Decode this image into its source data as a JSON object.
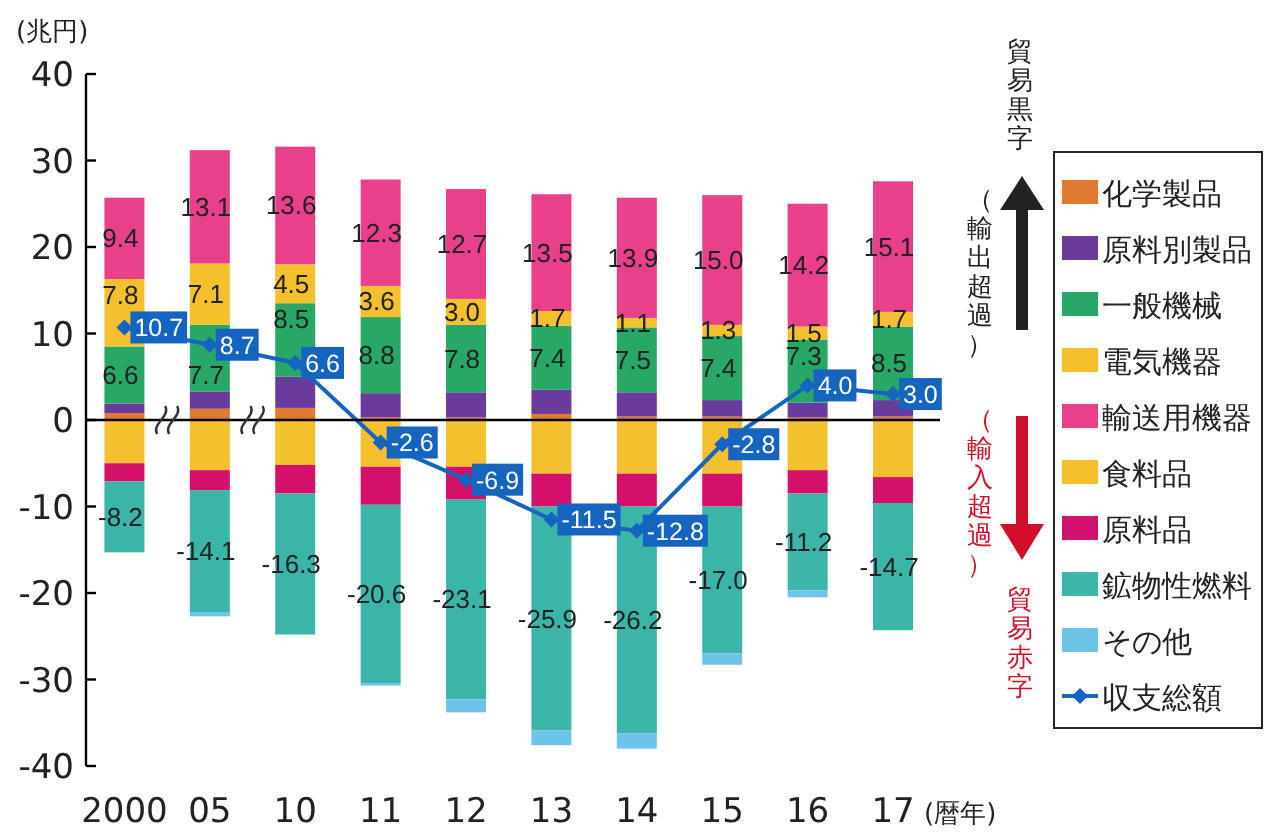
{
  "chart_data": {
    "type": "bar",
    "stacked": true,
    "categories": [
      "2000",
      "05",
      "10",
      "11",
      "12",
      "13",
      "14",
      "15",
      "16",
      "17"
    ],
    "series": [
      {
        "name": "化学製品",
        "color": "#e07a30",
        "values": [
          0.8,
          1.3,
          1.4,
          0.3,
          0.3,
          0.7,
          0.4,
          0.4,
          0.3,
          0.4
        ]
      },
      {
        "name": "原料別製品",
        "color": "#6a3a9c",
        "values": [
          1.1,
          2.0,
          3.6,
          2.8,
          2.9,
          2.8,
          2.8,
          1.9,
          1.7,
          1.9
        ]
      },
      {
        "name": "一般機械",
        "color": "#27a866",
        "values": [
          6.6,
          7.7,
          8.5,
          8.8,
          7.8,
          7.4,
          7.5,
          7.4,
          7.3,
          8.5
        ],
        "value_labels": [
          "6.6",
          "7.7",
          "8.5",
          "8.8",
          "7.8",
          "7.4",
          "7.5",
          "7.4",
          "7.3",
          "8.5"
        ]
      },
      {
        "name": "電気機器",
        "color": "#f5c02e",
        "values": [
          7.8,
          7.1,
          4.5,
          3.6,
          3.0,
          1.7,
          1.1,
          1.3,
          1.5,
          1.7
        ],
        "value_labels": [
          "7.8",
          "7.1",
          "4.5",
          "3.6",
          "3.0",
          "1.7",
          "1.1",
          "1.3",
          "1.5",
          "1.7"
        ]
      },
      {
        "name": "輸送用機器",
        "color": "#e8408a",
        "values": [
          9.4,
          13.1,
          13.6,
          12.3,
          12.7,
          13.5,
          13.9,
          15.0,
          14.2,
          15.1
        ],
        "value_labels": [
          "9.4",
          "13.1",
          "13.6",
          "12.3",
          "12.7",
          "13.5",
          "13.9",
          "15.0",
          "14.2",
          "15.1"
        ]
      },
      {
        "name": "食料品",
        "color": "#f5c02e",
        "values": [
          -5.0,
          -5.8,
          -5.2,
          -5.4,
          -5.4,
          -6.2,
          -6.2,
          -6.2,
          -5.8,
          -6.6
        ]
      },
      {
        "name": "原料品",
        "color": "#d4106a",
        "values": [
          -2.1,
          -2.3,
          -3.3,
          -4.4,
          -3.8,
          -3.8,
          -3.8,
          -3.8,
          -2.7,
          -3.0
        ]
      },
      {
        "name": "鉱物性燃料",
        "color": "#3bb5a8",
        "values": [
          -8.2,
          -14.1,
          -16.3,
          -20.6,
          -23.1,
          -25.9,
          -26.2,
          -17.0,
          -11.2,
          -14.7
        ],
        "value_labels": [
          "-8.2",
          "-14.1",
          "-16.3",
          "-20.6",
          "-23.1",
          "-25.9",
          "-26.2",
          "-17.0",
          "-11.2",
          "-14.7"
        ]
      },
      {
        "name": "その他",
        "color": "#6ec3e8",
        "values": [
          null,
          -0.5,
          null,
          -0.3,
          -1.5,
          -1.7,
          -1.8,
          -1.3,
          -0.8,
          null
        ]
      },
      {
        "name": "収支総額",
        "type": "line",
        "color": "#1565c0",
        "marker": "diamond",
        "values": [
          10.7,
          8.7,
          6.6,
          -2.6,
          -6.9,
          -11.5,
          -12.8,
          -2.8,
          4.0,
          3.0
        ],
        "value_labels": [
          "10.7",
          "8.7",
          "6.6",
          "-2.6",
          "-6.9",
          "-11.5",
          "-12.8",
          "-2.8",
          "4.0",
          "3.0"
        ]
      }
    ],
    "ylim": [
      -40,
      40
    ],
    "yticks": [
      -40,
      -30,
      -20,
      -10,
      0,
      10,
      20,
      30,
      40
    ],
    "ylabel": "(兆円)",
    "xlabel": "(暦年)",
    "legend": "right",
    "annotations": [
      "貿易黒字",
      "（輸出超過）",
      "（輸入超過）",
      "貿易赤字"
    ]
  }
}
